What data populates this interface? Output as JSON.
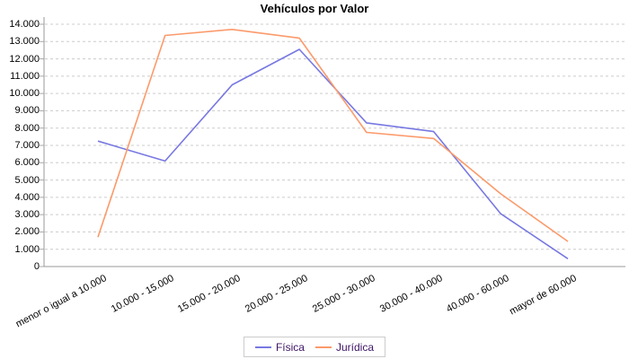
{
  "title": "Vehículos por Valor",
  "chart_data": {
    "type": "line",
    "title": "Vehículos por Valor",
    "categories": [
      "menor o igual a 10.000",
      "10.000 - 15.000",
      "15.000 - 20.000",
      "20.000 - 25.000",
      "25.000 - 30.000",
      "30.000 - 40.000",
      "40.000 - 60.000",
      "mayor de 60.000"
    ],
    "series": [
      {
        "name": "Física",
        "color": "#7878e2",
        "values": [
          7250,
          6100,
          10500,
          12550,
          8300,
          7800,
          3050,
          450
        ]
      },
      {
        "name": "Jurídica",
        "color": "#fb9a6b",
        "values": [
          1700,
          13350,
          13700,
          13200,
          7750,
          7400,
          4200,
          1450
        ]
      }
    ],
    "ylim": [
      0,
      14000
    ],
    "y_tick_step": 1000,
    "y_tick_labels": [
      "0",
      "1.000",
      "2.000",
      "3.000",
      "4.000",
      "5.000",
      "6.000",
      "7.000",
      "8.000",
      "9.000",
      "10.000",
      "11.000",
      "12.000",
      "13.000",
      "14.000"
    ],
    "grid": "horizontal-dashed",
    "legend_position": "bottom-center"
  },
  "colors": {
    "grid": "#cccccc",
    "axis": "#999999",
    "tick_mark": "#aaaaaa",
    "tick_text": "#000000",
    "legend_text": "#3d1466",
    "background": "#ffffff"
  }
}
